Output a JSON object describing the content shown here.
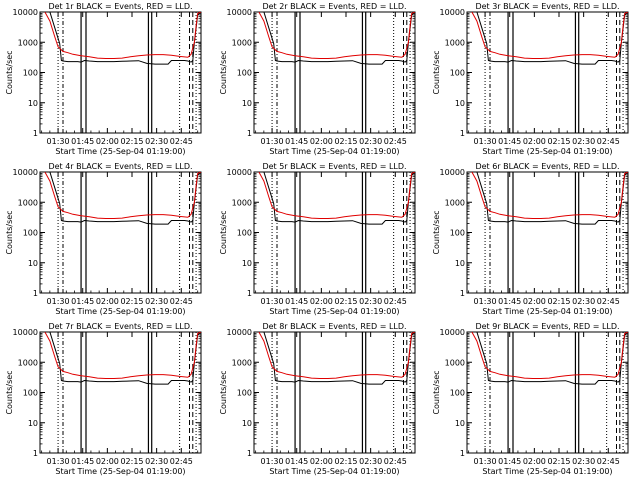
{
  "chart_data": {
    "type": "line",
    "shared": {
      "xlabel": "Start Time (25-Sep-04 01:19:00)",
      "ylabel": "Counts/sec",
      "x_tick_labels": [
        "01:30",
        "01:45",
        "02:00",
        "02:15",
        "02:30",
        "02:45"
      ],
      "y_tick_labels": [
        "1",
        "10",
        "100",
        "1000",
        "10000"
      ],
      "x_tick_minutes": [
        11,
        26,
        41,
        56,
        71,
        86
      ],
      "xlim_minutes": [
        0,
        98
      ],
      "ylim": [
        1,
        10000
      ],
      "y_scale": "log",
      "colors": {
        "events": "#000000",
        "lld": "#e00000"
      },
      "series": [
        {
          "name": "Events",
          "color": "#000000",
          "x": [
            3,
            6,
            9,
            12,
            13,
            14,
            17,
            20,
            23,
            25,
            27,
            30,
            35,
            40,
            45,
            50,
            55,
            60,
            65,
            70,
            75,
            78,
            80,
            85,
            88,
            90,
            92,
            93,
            94,
            96,
            98
          ],
          "y": [
            10000,
            10000,
            3000,
            900,
            250,
            240,
            230,
            230,
            230,
            220,
            250,
            240,
            230,
            230,
            230,
            235,
            240,
            245,
            200,
            190,
            190,
            190,
            250,
            250,
            250,
            240,
            220,
            250,
            1000,
            8000,
            12000
          ]
        },
        {
          "name": "LLD",
          "color": "#e00000",
          "x": [
            3,
            6,
            9,
            11,
            14,
            17,
            20,
            25,
            30,
            35,
            40,
            45,
            50,
            55,
            60,
            65,
            70,
            75,
            80,
            85,
            90,
            92,
            94,
            95,
            96,
            98
          ],
          "y": [
            12000,
            5000,
            1500,
            700,
            500,
            450,
            400,
            360,
            330,
            300,
            290,
            290,
            300,
            330,
            360,
            380,
            390,
            390,
            370,
            340,
            320,
            400,
            1000,
            3500,
            9000,
            15000
          ]
        }
      ],
      "markers": [
        {
          "style": "dotted",
          "x": [
            11,
            85,
            95
          ]
        },
        {
          "style": "dashdot",
          "x": [
            14
          ]
        },
        {
          "style": "solid",
          "x": [
            25,
            28,
            66,
            68
          ]
        },
        {
          "style": "dashed",
          "x": [
            91,
            93
          ]
        }
      ]
    },
    "panels": [
      {
        "title": "Det 1r  BLACK = Events, RED = LLD."
      },
      {
        "title": "Det 2r  BLACK = Events, RED = LLD."
      },
      {
        "title": "Det 3r  BLACK = Events, RED = LLD."
      },
      {
        "title": "Det 4r  BLACK = Events, RED = LLD."
      },
      {
        "title": "Det 5r  BLACK = Events, RED = LLD."
      },
      {
        "title": "Det 6r  BLACK = Events, RED = LLD."
      },
      {
        "title": "Det 7r  BLACK = Events, RED = LLD."
      },
      {
        "title": "Det 8r  BLACK = Events, RED = LLD."
      },
      {
        "title": "Det 9r  BLACK = Events, RED = LLD."
      }
    ]
  }
}
